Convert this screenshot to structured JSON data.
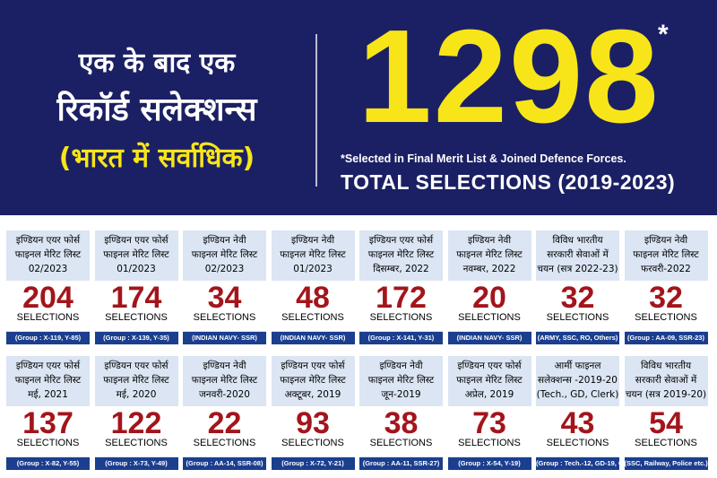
{
  "header": {
    "hindi_line1": "एक के बाद एक",
    "hindi_line2": "रिकॉर्ड सलेक्शन्स",
    "hindi_line3": "(भारत में सर्वाधिक)",
    "big_number": "1298",
    "asterisk": "*",
    "note": "*Selected in Final Merit List &  Joined Defence Forces.",
    "total_label": "TOTAL SELECTIONS (2019-2023)"
  },
  "colors": {
    "banner": "#1b2064",
    "accent_yellow": "#f7e51a",
    "number_red": "#a3151b",
    "bar_blue": "#1b3e8e",
    "card_bg": "#dbe5f3"
  },
  "cards": [
    {
      "title_1": "इण्डियन एयर फोर्स",
      "title_2": "फाइनल मेरिट लिस्ट",
      "title_3": "02/2023",
      "count": "204",
      "label": "SELECTIONS",
      "footer": "(Group : X-119, Y-85)"
    },
    {
      "title_1": "इण्डियन एयर फोर्स",
      "title_2": "फाइनल मेरिट लिस्ट",
      "title_3": "01/2023",
      "count": "174",
      "label": "SELECTIONS",
      "footer": "(Group : X-139, Y-35)"
    },
    {
      "title_1": "इण्डियन नेवी",
      "title_2": "फाइनल मेरिट लिस्ट",
      "title_3": "02/2023",
      "count": "34",
      "label": "SELECTIONS",
      "footer": "(INDIAN NAVY- SSR)"
    },
    {
      "title_1": "इण्डियन नेवी",
      "title_2": "फाइनल मेरिट लिस्ट",
      "title_3": "01/2023",
      "count": "48",
      "label": "SELECTIONS",
      "footer": "(INDIAN NAVY- SSR)"
    },
    {
      "title_1": "इण्डियन एयर फोर्स",
      "title_2": "फाइनल मेरिट लिस्ट",
      "title_3": "दिसम्बर, 2022",
      "count": "172",
      "label": "SELECTIONS",
      "footer": "(Group : X-141, Y-31)"
    },
    {
      "title_1": "इण्डियन नेवी",
      "title_2": "फाइनल मेरिट लिस्ट",
      "title_3": "नवम्बर, 2022",
      "count": "20",
      "label": "SELECTIONS",
      "footer": "(INDIAN NAVY- SSR)"
    },
    {
      "title_1": "विविध भारतीय",
      "title_2": "सरकारी सेवाओं में",
      "title_3": "चयन (सत्र 2022-23)",
      "count": "32",
      "label": "SELECTIONS",
      "footer": "(ARMY, SSC, RO, Others)"
    },
    {
      "title_1": "इण्डियन नेवी",
      "title_2": "फाइनल मेरिट लिस्ट",
      "title_3": "फरवरी-2022",
      "count": "32",
      "label": "SELECTIONS",
      "footer": "(Group : AA-09, SSR-23)"
    },
    {
      "title_1": "इण्डियन एयर फोर्स",
      "title_2": "फाइनल मेरिट लिस्ट",
      "title_3": "मई, 2021",
      "count": "137",
      "label": "SELECTIONS",
      "footer": "(Group : X-82, Y-55)"
    },
    {
      "title_1": "इण्डियन एयर फोर्स",
      "title_2": "फाइनल मेरिट लिस्ट",
      "title_3": "मई, 2020",
      "count": "122",
      "label": "SELECTIONS",
      "footer": "(Group : X-73, Y-49)"
    },
    {
      "title_1": "इण्डियन नेवी",
      "title_2": "फाइनल मेरिट लिस्ट",
      "title_3": "जनवरी-2020",
      "count": "22",
      "label": "SELECTIONS",
      "footer": "(Group : AA-14, SSR-08)"
    },
    {
      "title_1": "इण्डियन एयर फोर्स",
      "title_2": "फाइनल मेरिट लिस्ट",
      "title_3": "अक्टूबर, 2019",
      "count": "93",
      "label": "SELECTIONS",
      "footer": "(Group : X-72, Y-21)"
    },
    {
      "title_1": "इण्डियन नेवी",
      "title_2": "फाइनल मेरिट लिस्ट",
      "title_3": "जून-2019",
      "count": "38",
      "label": "SELECTIONS",
      "footer": "(Group : AA-11, SSR-27)"
    },
    {
      "title_1": "इण्डियन एयर फोर्स",
      "title_2": "फाइनल मेरिट लिस्ट",
      "title_3": "अप्रेल, 2019",
      "count": "73",
      "label": "SELECTIONS",
      "footer": "(Group : X-54, Y-19)"
    },
    {
      "title_1": "आर्मी फाइनल",
      "title_2": "सलेक्शन्स -2019-20",
      "title_3": "(Tech., GD, Clerk)",
      "count": "43",
      "label": "SELECTIONS",
      "footer": "(Group : Tech.-12, GD-19, Clerk-12)"
    },
    {
      "title_1": "विविध भारतीय",
      "title_2": "सरकारी सेवाओं में",
      "title_3": "चयन (सत्र 2019-20)",
      "count": "54",
      "label": "SELECTIONS",
      "footer": "(SSC, Railway, Police etc.)"
    }
  ]
}
